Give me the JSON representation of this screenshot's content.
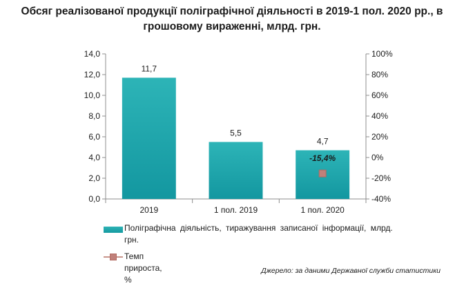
{
  "chart_data": {
    "type": "bar",
    "title": "Обсяг реалізованої продукції поліграфічної діяльності в 2019-1 пол. 2020 рр., в грошовому вираженні, млрд. грн.",
    "categories": [
      "2019",
      "1 пол. 2019",
      "1 пол. 2020"
    ],
    "series": [
      {
        "name": "Поліграфічна діяльність, тиражування записаної інформації, млрд. грн.",
        "type": "bar",
        "axis": "left",
        "values": [
          11.7,
          5.5,
          4.7
        ],
        "labels": [
          "11,7",
          "5,5",
          "4,7"
        ],
        "color": "#1aa3a8"
      },
      {
        "name": "Темп прироста, %",
        "type": "marker",
        "axis": "right",
        "values": [
          null,
          null,
          -15.4
        ],
        "labels": [
          null,
          null,
          "-15,4%"
        ],
        "color": "#c0807a"
      }
    ],
    "left_axis": {
      "ylim": [
        0,
        14
      ],
      "ticks": [
        "0,0",
        "2,0",
        "4,0",
        "6,0",
        "8,0",
        "10,0",
        "12,0",
        "14,0"
      ]
    },
    "right_axis": {
      "ylim": [
        -40,
        100
      ],
      "ticks": [
        "-40%",
        "-20%",
        "0%",
        "20%",
        "40%",
        "60%",
        "80%",
        "100%"
      ]
    },
    "grid": false,
    "legend_position": "bottom"
  },
  "source": "Джерело: за даними Державної служби статистики"
}
